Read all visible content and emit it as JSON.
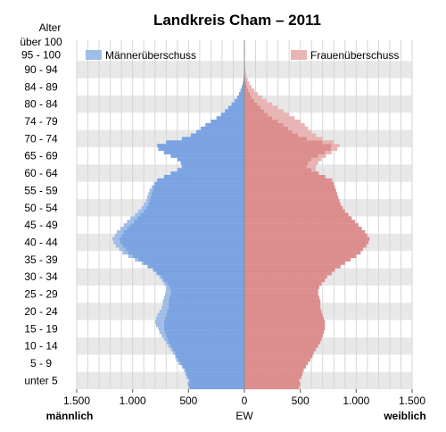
{
  "chart_data": {
    "type": "bar",
    "orientation": "population-pyramid",
    "title": "Landkreis Cham – 2011",
    "y_axis_title": "Alter",
    "x_axis_label": "EW",
    "left_label": "männlich",
    "right_label": "weiblich",
    "xlim": [
      -1500,
      1500
    ],
    "x_ticks": [
      -1500,
      -1000,
      -500,
      0,
      500,
      1000,
      1500
    ],
    "x_tick_labels": [
      "1.500",
      "1.000",
      "500",
      "0",
      "500",
      "1.000",
      "1.500"
    ],
    "age_group_labels": [
      "unter 5",
      "5 - 9",
      "10 - 14",
      "15 - 19",
      "20 - 24",
      "25 - 29",
      "30 - 34",
      "35 - 39",
      "40 - 44",
      "45 - 49",
      "50 - 54",
      "55 - 59",
      "60 - 64",
      "65 - 69",
      "70 - 74",
      "74 - 79",
      "80 - 84",
      "84 - 89",
      "90 - 94",
      "95 - 100",
      "über 100"
    ],
    "legend": [
      {
        "label": "Männerüberschuss",
        "color": "#9fbde6",
        "position": "top-left"
      },
      {
        "label": "Frauenüberschuss",
        "color": "#e8b4b4",
        "position": "top-right"
      }
    ],
    "colors": {
      "male": "#7ba3e2",
      "female": "#dc8d8d",
      "male_surplus": "#9fbde6",
      "female_surplus": "#e8b4b4",
      "band": "#e8e8e8"
    },
    "ages": [
      0,
      1,
      2,
      3,
      4,
      5,
      6,
      7,
      8,
      9,
      10,
      11,
      12,
      13,
      14,
      15,
      16,
      17,
      18,
      19,
      20,
      21,
      22,
      23,
      24,
      25,
      26,
      27,
      28,
      29,
      30,
      31,
      32,
      33,
      34,
      35,
      36,
      37,
      38,
      39,
      40,
      41,
      42,
      43,
      44,
      45,
      46,
      47,
      48,
      49,
      50,
      51,
      52,
      53,
      54,
      55,
      56,
      57,
      58,
      59,
      60,
      61,
      62,
      63,
      64,
      65,
      66,
      67,
      68,
      69,
      70,
      71,
      72,
      73,
      74,
      75,
      76,
      77,
      78,
      79,
      80,
      81,
      82,
      83,
      84,
      85,
      86,
      87,
      88,
      89,
      90,
      91,
      92,
      93,
      94,
      95,
      96,
      97,
      98,
      99,
      100
    ],
    "series": [
      {
        "name": "männlich",
        "values": [
          500,
          510,
          500,
          520,
          530,
          540,
          560,
          590,
          610,
          620,
          640,
          660,
          680,
          700,
          720,
          740,
          760,
          770,
          790,
          800,
          790,
          780,
          760,
          740,
          730,
          730,
          720,
          710,
          700,
          700,
          720,
          740,
          760,
          790,
          820,
          870,
          920,
          980,
          1040,
          1090,
          1120,
          1150,
          1170,
          1180,
          1160,
          1140,
          1110,
          1080,
          1050,
          1020,
          980,
          950,
          920,
          900,
          880,
          870,
          860,
          850,
          830,
          810,
          780,
          720,
          660,
          600,
          560,
          570,
          600,
          660,
          720,
          770,
          780,
          700,
          560,
          480,
          430,
          390,
          350,
          300,
          250,
          210,
          175,
          145,
          115,
          90,
          65,
          48,
          35,
          24,
          15,
          10,
          6,
          4,
          3,
          2,
          1,
          1,
          1,
          0,
          0,
          0,
          0
        ]
      },
      {
        "name": "weiblich",
        "values": [
          490,
          500,
          490,
          510,
          520,
          530,
          550,
          570,
          590,
          610,
          620,
          640,
          660,
          680,
          690,
          700,
          710,
          720,
          720,
          720,
          710,
          700,
          690,
          680,
          680,
          680,
          670,
          660,
          660,
          670,
          690,
          720,
          740,
          780,
          810,
          860,
          900,
          950,
          1000,
          1040,
          1060,
          1090,
          1110,
          1120,
          1100,
          1080,
          1050,
          1020,
          990,
          960,
          930,
          900,
          880,
          860,
          850,
          840,
          830,
          820,
          810,
          800,
          790,
          730,
          670,
          640,
          640,
          660,
          690,
          730,
          780,
          830,
          850,
          800,
          700,
          640,
          600,
          570,
          540,
          500,
          450,
          400,
          350,
          300,
          250,
          200,
          160,
          120,
          90,
          65,
          45,
          30,
          20,
          13,
          8,
          5,
          3,
          2,
          1,
          1,
          0,
          0,
          0
        ]
      }
    ]
  }
}
